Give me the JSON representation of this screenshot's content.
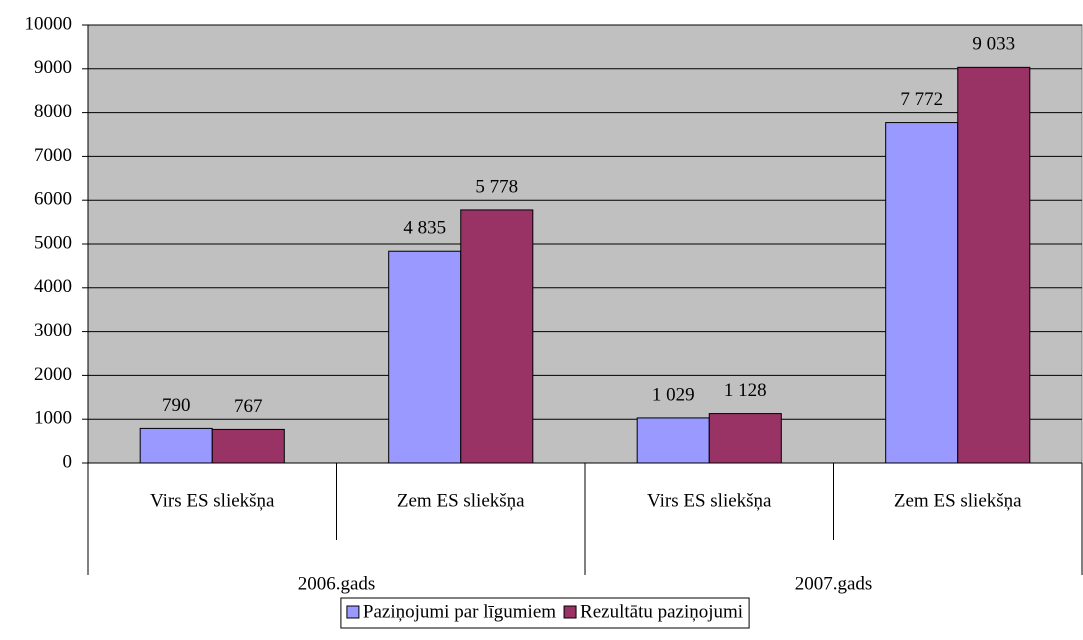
{
  "chart_data": {
    "type": "bar",
    "categories": [
      "Virs ES sliekšņa",
      "Zem ES sliekšņa",
      "Virs ES sliekšņa",
      "Zem ES sliekšņa"
    ],
    "category_groups": [
      "2006.gads",
      "2007.gads"
    ],
    "series": [
      {
        "name": "Paziņojumi par līgumiem",
        "color": "#9999ff",
        "values": [
          790,
          4835,
          1029,
          7772
        ],
        "value_labels": [
          "790",
          "4 835",
          "1 029",
          "7 772"
        ]
      },
      {
        "name": "Rezultātu paziņojumi",
        "color": "#993366",
        "values": [
          767,
          5778,
          1128,
          9033
        ],
        "value_labels": [
          "767",
          "5 778",
          "1 128",
          "9 033"
        ]
      }
    ],
    "ylim": [
      0,
      10000
    ],
    "yticks": [
      0,
      1000,
      2000,
      3000,
      4000,
      5000,
      6000,
      7000,
      8000,
      9000,
      10000
    ],
    "grid": true,
    "legend": "bottom"
  }
}
